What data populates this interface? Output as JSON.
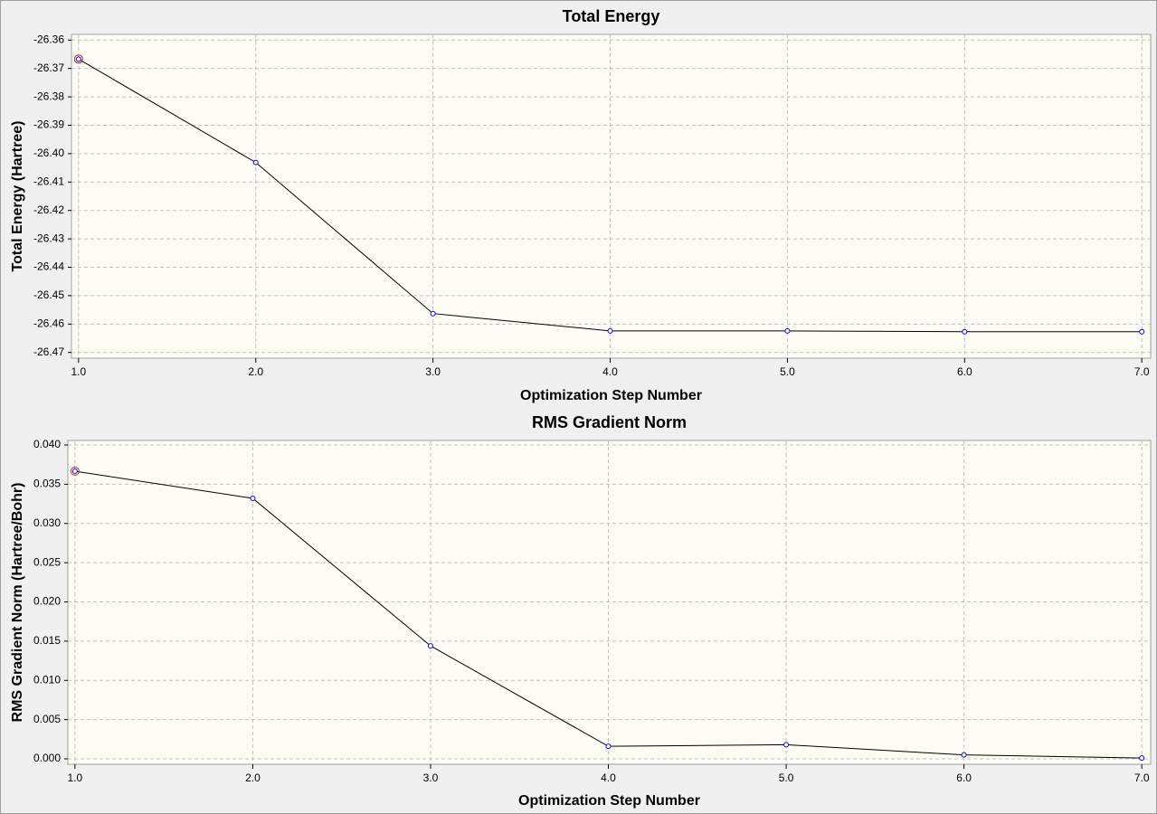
{
  "chart_data": [
    {
      "type": "line",
      "title": "Total Energy",
      "x_label": "Optimization Step Number",
      "y_label": "Total Energy (Hartree)",
      "x": [
        1,
        2,
        3,
        4,
        5,
        6,
        7
      ],
      "series": [
        {
          "name": "Total Energy",
          "color": "#000000",
          "marker_color": "#0000ff",
          "values": [
            -26.3667,
            -26.4031,
            -26.4563,
            -26.4624,
            -26.4624,
            -26.4627,
            -26.4627
          ]
        }
      ],
      "xlim": [
        0.96,
        7.05
      ],
      "ylim": [
        -26.472,
        -26.358
      ],
      "xticks": [
        {
          "value": 1,
          "label": "1.0"
        },
        {
          "value": 2,
          "label": "2.0"
        },
        {
          "value": 3,
          "label": "3.0"
        },
        {
          "value": 4,
          "label": "4.0"
        },
        {
          "value": 5,
          "label": "5.0"
        },
        {
          "value": 6,
          "label": "6.0"
        },
        {
          "value": 7,
          "label": "7.0"
        }
      ],
      "yticks": [
        -26.36,
        -26.37,
        -26.38,
        -26.39,
        {
          "value": -26.4,
          "label": "-26.40"
        },
        -26.41,
        -26.42,
        -26.43,
        -26.44,
        -26.45,
        -26.46,
        -26.47
      ],
      "grid": true
    },
    {
      "type": "line",
      "title": "RMS Gradient Norm",
      "x_label": "Optimization Step Number",
      "y_label": "RMS Gradient Norm (Hartree/Bohr)",
      "x": [
        1,
        2,
        3,
        4,
        5,
        6,
        7
      ],
      "series": [
        {
          "name": "RMS Gradient Norm",
          "color": "#000000",
          "marker_color": "#0000ff",
          "values": [
            0.03666,
            0.0332,
            0.0144,
            0.0016,
            0.0018,
            0.0005,
            0.0001
          ]
        }
      ],
      "xlim": [
        0.96,
        7.05
      ],
      "ylim": [
        -0.00069,
        0.04058
      ],
      "xticks": [
        {
          "value": 1,
          "label": "1.0"
        },
        {
          "value": 2,
          "label": "2.0"
        },
        {
          "value": 3,
          "label": "3.0"
        },
        {
          "value": 4,
          "label": "4.0"
        },
        {
          "value": 5,
          "label": "5.0"
        },
        {
          "value": 6,
          "label": "6.0"
        },
        {
          "value": 7,
          "label": "7.0"
        }
      ],
      "yticks": [
        {
          "value": 0.04,
          "label": "0.040"
        },
        0.035,
        {
          "value": 0.03,
          "label": "0.030"
        },
        0.025,
        {
          "value": 0.02,
          "label": "0.020"
        },
        0.015,
        {
          "value": 0.01,
          "label": "0.010"
        },
        0.005,
        {
          "value": 0,
          "label": "0.000"
        }
      ],
      "grid": true
    }
  ]
}
